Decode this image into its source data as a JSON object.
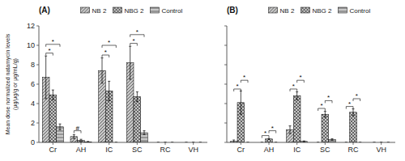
{
  "chart_data": [
    {
      "type": "bar",
      "title": "(A)",
      "categories": [
        "Cr",
        "AH",
        "IC",
        "SC",
        "RC",
        "VH"
      ],
      "series": [
        {
          "name": "NB 2",
          "color": "#c8c8c8",
          "values": [
            6.7,
            0.6,
            7.4,
            8.2,
            0.0,
            0.0
          ],
          "errors": [
            2.2,
            0.2,
            1.3,
            1.7,
            0.0,
            0.0
          ]
        },
        {
          "name": "NBG 2",
          "color": "#c8c8c8",
          "values": [
            4.9,
            0.2,
            5.3,
            4.7,
            0.0,
            0.0
          ],
          "errors": [
            0.5,
            0.12,
            1.0,
            0.5,
            0.0,
            0.0
          ]
        },
        {
          "name": "Control",
          "color": "#c8c8c8",
          "values": [
            1.6,
            0.05,
            0.0,
            1.0,
            0.0,
            0.0
          ],
          "errors": [
            0.3,
            0.05,
            0.0,
            0.2,
            0.0,
            0.0
          ]
        }
      ],
      "y_label": "Mean dose normalized natamycin levels\n(μg/μg/g or μg/mL/g)",
      "ylim": [
        0,
        12
      ],
      "yticks": [
        0,
        2,
        4,
        6,
        8,
        10,
        12
      ],
      "grid": false,
      "legend": "top",
      "annotations": [
        {
          "text": "*",
          "category": "Cr",
          "from": "NB 2",
          "to": "NBG 2",
          "y": 9.2
        },
        {
          "text": "*",
          "category": "Cr",
          "from": "NB 2",
          "to": "Control",
          "y": 10.1
        },
        {
          "text": "#",
          "category": "AH",
          "from": "NB 2",
          "to": "NBG 2",
          "y": 1.2
        },
        {
          "text": "*",
          "category": "IC",
          "from": "NB 2",
          "to": "NBG 2",
          "y": 9.0
        },
        {
          "text": "*",
          "category": "IC",
          "from": "NB 2",
          "to": "Control",
          "y": 10.0
        },
        {
          "text": "*",
          "category": "SC",
          "from": "NB 2",
          "to": "NBG 2",
          "y": 10.2
        },
        {
          "text": "*",
          "category": "SC",
          "from": "NB 2",
          "to": "Control",
          "y": 11.1
        }
      ]
    },
    {
      "type": "bar",
      "title": "(B)",
      "categories": [
        "Cr",
        "AH",
        "IC",
        "SC",
        "RC",
        "VH"
      ],
      "series": [
        {
          "name": "NB 2",
          "color": "#c8c8c8",
          "values": [
            0.1,
            0.0,
            1.3,
            0.0,
            0.0,
            0.0
          ],
          "errors": [
            0.15,
            0.0,
            0.4,
            0.0,
            0.0,
            0.0
          ]
        },
        {
          "name": "NBG 2",
          "color": "#c8c8c8",
          "values": [
            4.1,
            0.35,
            4.8,
            2.9,
            3.1,
            0.0
          ],
          "errors": [
            1.2,
            0.05,
            0.4,
            0.3,
            0.35,
            0.0
          ]
        },
        {
          "name": "Control",
          "color": "#c8c8c8",
          "values": [
            0.0,
            0.0,
            0.1,
            0.3,
            0.0,
            0.0
          ],
          "errors": [
            0.0,
            0.0,
            0.05,
            0.08,
            0.0,
            0.0
          ]
        }
      ],
      "ylim": [
        0,
        12
      ],
      "yticks": [
        0,
        2,
        4,
        6,
        8,
        10,
        12
      ],
      "grid": false,
      "legend": "top",
      "tick_labels": "x",
      "annotations": [
        {
          "text": "*",
          "category": "Cr",
          "from": "NB 2",
          "to": "NBG 2",
          "y": 5.5
        },
        {
          "text": "*",
          "category": "Cr",
          "from": "NBG 2",
          "to": "Control",
          "y": 6.4
        },
        {
          "text": "*",
          "category": "AH",
          "from": "NB 2",
          "to": "NBG 2",
          "y": 0.7
        },
        {
          "text": "*",
          "category": "AH",
          "from": "NBG 2",
          "to": "Control",
          "y": 1.2
        },
        {
          "text": "*",
          "category": "IC",
          "from": "NB 2",
          "to": "NBG 2",
          "y": 5.5
        },
        {
          "text": "*",
          "category": "IC",
          "from": "NBG 2",
          "to": "Control",
          "y": 6.4
        },
        {
          "text": "*",
          "category": "SC",
          "from": "NB 2",
          "to": "NBG 2",
          "y": 3.5
        },
        {
          "text": "*",
          "category": "SC",
          "from": "NBG 2",
          "to": "Control",
          "y": 4.3
        },
        {
          "text": "*",
          "category": "RC",
          "from": "NB 2",
          "to": "NBG 2",
          "y": 3.7
        },
        {
          "text": "*",
          "category": "RC",
          "from": "NBG 2",
          "to": "Control",
          "y": 4.5
        }
      ]
    }
  ]
}
